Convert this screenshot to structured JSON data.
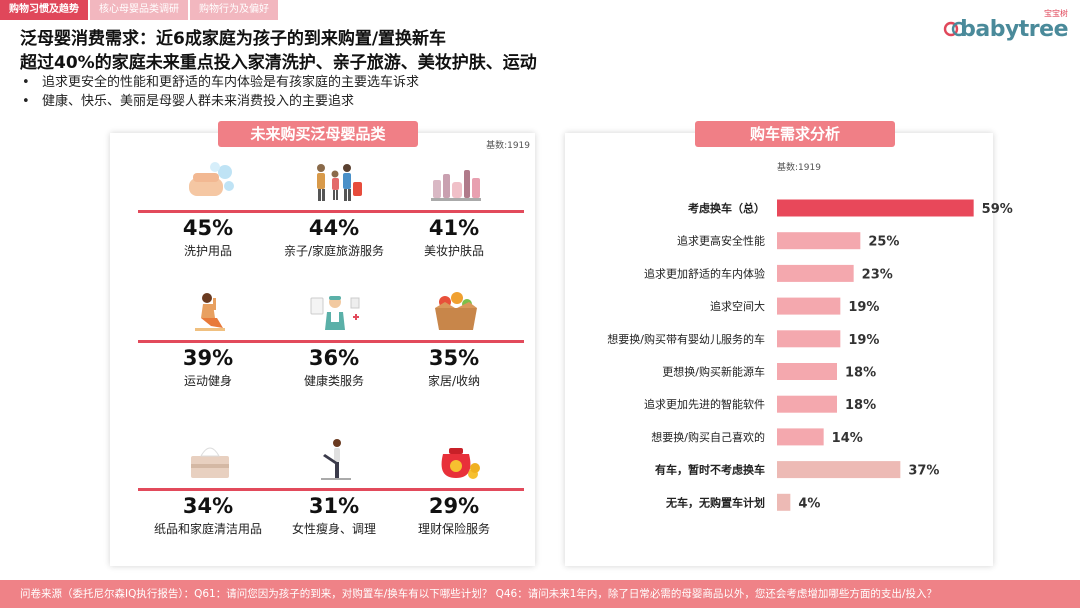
{
  "tabs": [
    {
      "label": "购物习惯及趋势",
      "active": true
    },
    {
      "label": "核心母婴品类调研",
      "active": false
    },
    {
      "label": "购物行为及偏好",
      "active": false
    }
  ],
  "logo": {
    "cn": "宝宝树",
    "en": "babytree"
  },
  "header": {
    "line1": "泛母婴消费需求：近6成家庭为孩子的到来购置/置换新车",
    "line2": "超过40%的家庭未来重点投入家清洗护、亲子旅游、美妆护肤、运动"
  },
  "bullets": [
    "追求更安全的性能和更舒适的车内体验是有孩家庭的主要选车诉求",
    "健康、快乐、美丽是母婴人群未来消费投入的主要追求"
  ],
  "left_panel": {
    "title": "未来购买泛母婴品类",
    "base": "基数:1919",
    "categories": [
      {
        "pct": "45%",
        "label": "洗护用品",
        "icon": "hand-wash-icon"
      },
      {
        "pct": "44%",
        "label": "亲子/家庭旅游服务",
        "icon": "family-travel-icon"
      },
      {
        "pct": "41%",
        "label": "美妆护肤品",
        "icon": "cosmetics-icon"
      },
      {
        "pct": "39%",
        "label": "运动健身",
        "icon": "fitness-icon"
      },
      {
        "pct": "36%",
        "label": "健康类服务",
        "icon": "doctor-icon"
      },
      {
        "pct": "35%",
        "label": "家居/收纳",
        "icon": "storage-box-icon"
      },
      {
        "pct": "34%",
        "label": "纸品和家庭清洁用品",
        "icon": "tissue-box-icon"
      },
      {
        "pct": "31%",
        "label": "女性瘦身、调理",
        "icon": "yoga-icon"
      },
      {
        "pct": "29%",
        "label": "理财保险服务",
        "icon": "money-bag-icon"
      }
    ]
  },
  "right_panel": {
    "title": "购车需求分析",
    "base": "基数:1919"
  },
  "chart_data": {
    "type": "bar",
    "orientation": "horizontal",
    "categories": [
      "考虑换车（总）",
      "追求更高安全性能",
      "追求更加舒适的车内体验",
      "追求空间大",
      "想要换/购买带有婴幼儿服务的车",
      "更想换/购买新能源车",
      "追求更加先进的智能软件",
      "想要换/购买自己喜欢的",
      "有车，暂时不考虑换车",
      "无车，无购置车计划"
    ],
    "values": [
      59,
      25,
      23,
      19,
      19,
      18,
      18,
      14,
      37,
      4
    ],
    "value_labels": [
      "59%",
      "25%",
      "23%",
      "19%",
      "19%",
      "18%",
      "18%",
      "14%",
      "37%",
      "4%"
    ],
    "bold": [
      true,
      false,
      false,
      false,
      false,
      false,
      false,
      false,
      true,
      true
    ],
    "colors": [
      "#e8485a",
      "#f4a8ae",
      "#f4a8ae",
      "#f4a8ae",
      "#f4a8ae",
      "#f4a8ae",
      "#f4a8ae",
      "#f4a8ae",
      "#edbab5",
      "#edbab5"
    ],
    "xlim": [
      0,
      60
    ]
  },
  "footer": {
    "text": "问卷来源（委托尼尔森IQ执行报告）：Q61：请问您因为孩子的到来，对购置车/换车有以下哪些计划？ Q46：请问未来1年内，除了日常必需的母婴商品以外，您还会考虑增加哪些方面的支出/投入？"
  },
  "colors": {
    "accent": "#e24a5b",
    "pill": "#f07f86",
    "footer": "#ef8287"
  }
}
